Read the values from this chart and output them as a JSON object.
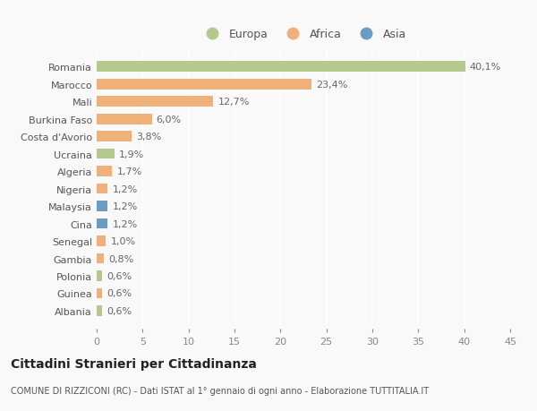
{
  "categories": [
    "Romania",
    "Marocco",
    "Mali",
    "Burkina Faso",
    "Costa d'Avorio",
    "Ucraina",
    "Algeria",
    "Nigeria",
    "Malaysia",
    "Cina",
    "Senegal",
    "Gambia",
    "Polonia",
    "Guinea",
    "Albania"
  ],
  "values": [
    40.1,
    23.4,
    12.7,
    6.0,
    3.8,
    1.9,
    1.7,
    1.2,
    1.2,
    1.2,
    1.0,
    0.8,
    0.6,
    0.6,
    0.6
  ],
  "labels": [
    "40,1%",
    "23,4%",
    "12,7%",
    "6,0%",
    "3,8%",
    "1,9%",
    "1,7%",
    "1,2%",
    "1,2%",
    "1,2%",
    "1,0%",
    "0,8%",
    "0,6%",
    "0,6%",
    "0,6%"
  ],
  "continent": [
    "Europa",
    "Africa",
    "Africa",
    "Africa",
    "Africa",
    "Europa",
    "Africa",
    "Africa",
    "Asia",
    "Asia",
    "Africa",
    "Africa",
    "Europa",
    "Africa",
    "Europa"
  ],
  "colors": {
    "Europa": "#b5c98e",
    "Africa": "#f0b07a",
    "Asia": "#6b9dc2"
  },
  "xlim": [
    0,
    45
  ],
  "xticks": [
    0,
    5,
    10,
    15,
    20,
    25,
    30,
    35,
    40,
    45
  ],
  "title": "Cittadini Stranieri per Cittadinanza",
  "subtitle": "COMUNE DI RIZZICONI (RC) - Dati ISTAT al 1° gennaio di ogni anno - Elaborazione TUTTITALIA.IT",
  "background_color": "#f9f9f9",
  "grid_color": "#ffffff",
  "bar_height": 0.6,
  "label_fontsize": 8,
  "ytick_fontsize": 8,
  "xtick_fontsize": 8,
  "title_fontsize": 10,
  "subtitle_fontsize": 7
}
